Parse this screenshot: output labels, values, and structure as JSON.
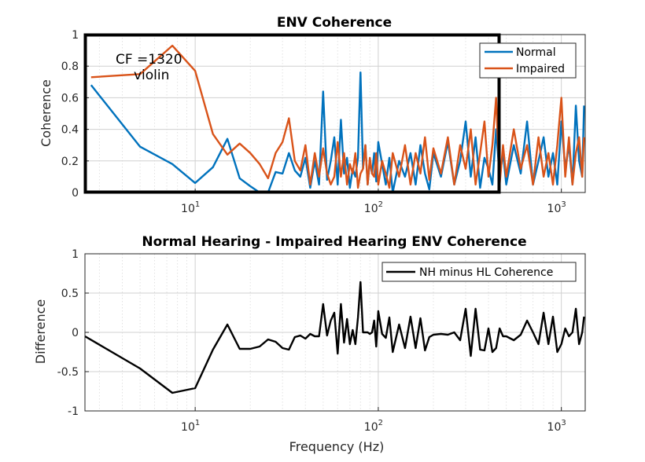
{
  "chart_data": [
    {
      "type": "line",
      "title": "ENV Coherence",
      "xlabel": "",
      "ylabel": "Coherence",
      "xscale": "log",
      "xlim": [
        2.5,
        1350
      ],
      "ylim": [
        0,
        1
      ],
      "yticks": [
        "0",
        "0.2",
        "0.4",
        "0.6",
        "0.8",
        "1"
      ],
      "xticks": [
        {
          "base": "10",
          "exp": "1",
          "value": 10
        },
        {
          "base": "10",
          "exp": "2",
          "value": 100
        },
        {
          "base": "10",
          "exp": "3",
          "value": 1000
        }
      ],
      "grid": true,
      "legend": "top-right",
      "annotations": [
        "CF =1320",
        "violin"
      ],
      "series": [
        {
          "name": "Normal",
          "color": "#0072BD",
          "x": [
            2.7,
            5,
            7.5,
            10,
            12.5,
            15,
            17.5,
            20,
            22.5,
            25,
            27.5,
            30,
            32.5,
            35,
            37.5,
            40,
            42.5,
            45,
            47.5,
            50,
            52.5,
            55,
            57.5,
            60,
            62.5,
            65,
            67.5,
            70,
            72.5,
            75,
            77.5,
            80,
            82.5,
            85,
            87.5,
            90,
            92.5,
            95,
            97.5,
            100,
            105,
            110,
            115,
            120,
            130,
            140,
            150,
            160,
            170,
            180,
            190,
            200,
            220,
            240,
            260,
            280,
            300,
            320,
            340,
            360,
            380,
            400,
            420,
            440,
            460,
            480,
            500,
            550,
            600,
            650,
            700,
            750,
            800,
            850,
            900,
            950,
            1000,
            1050,
            1100,
            1150,
            1200,
            1250,
            1300,
            1330
          ],
          "y": [
            0.68,
            0.29,
            0.18,
            0.06,
            0.16,
            0.34,
            0.09,
            0.04,
            0.0,
            0.0,
            0.13,
            0.12,
            0.25,
            0.14,
            0.1,
            0.22,
            0.03,
            0.2,
            0.05,
            0.64,
            0.08,
            0.2,
            0.35,
            0.05,
            0.46,
            0.12,
            0.22,
            0.03,
            0.15,
            0.1,
            0.22,
            0.76,
            0.15,
            0.3,
            0.05,
            0.2,
            0.12,
            0.25,
            0.07,
            0.32,
            0.18,
            0.05,
            0.22,
            0.0,
            0.2,
            0.1,
            0.25,
            0.05,
            0.3,
            0.12,
            0.02,
            0.25,
            0.1,
            0.32,
            0.05,
            0.2,
            0.45,
            0.1,
            0.35,
            0.03,
            0.22,
            0.15,
            0.05,
            0.4,
            0.1,
            0.25,
            0.05,
            0.3,
            0.12,
            0.45,
            0.05,
            0.2,
            0.35,
            0.1,
            0.25,
            0.05,
            0.45,
            0.15,
            0.3,
            0.05,
            0.55,
            0.2,
            0.1,
            0.55
          ]
        },
        {
          "name": "Impaired",
          "color": "#D95319",
          "x": [
            2.7,
            5,
            7.5,
            10,
            12.5,
            15,
            17.5,
            20,
            22.5,
            25,
            27.5,
            30,
            32.5,
            35,
            37.5,
            40,
            42.5,
            45,
            47.5,
            50,
            52.5,
            55,
            57.5,
            60,
            62.5,
            65,
            67.5,
            70,
            72.5,
            75,
            77.5,
            80,
            82.5,
            85,
            87.5,
            90,
            92.5,
            95,
            97.5,
            100,
            105,
            110,
            115,
            120,
            130,
            140,
            150,
            160,
            170,
            180,
            190,
            200,
            220,
            240,
            260,
            280,
            300,
            320,
            340,
            360,
            380,
            400,
            420,
            440,
            460,
            480,
            500,
            550,
            600,
            650,
            700,
            750,
            800,
            850,
            900,
            950,
            1000,
            1050,
            1100,
            1150,
            1200,
            1250,
            1300,
            1330
          ],
          "y": [
            0.73,
            0.75,
            0.93,
            0.77,
            0.37,
            0.24,
            0.31,
            0.25,
            0.18,
            0.09,
            0.25,
            0.32,
            0.47,
            0.2,
            0.14,
            0.3,
            0.05,
            0.25,
            0.1,
            0.28,
            0.12,
            0.05,
            0.1,
            0.32,
            0.1,
            0.25,
            0.05,
            0.18,
            0.12,
            0.25,
            0.03,
            0.12,
            0.15,
            0.3,
            0.05,
            0.22,
            0.12,
            0.1,
            0.25,
            0.05,
            0.2,
            0.12,
            0.03,
            0.25,
            0.1,
            0.3,
            0.05,
            0.25,
            0.12,
            0.35,
            0.08,
            0.28,
            0.12,
            0.35,
            0.05,
            0.3,
            0.15,
            0.4,
            0.05,
            0.25,
            0.45,
            0.1,
            0.3,
            0.6,
            0.05,
            0.3,
            0.1,
            0.4,
            0.15,
            0.3,
            0.05,
            0.35,
            0.1,
            0.25,
            0.05,
            0.3,
            0.6,
            0.1,
            0.35,
            0.05,
            0.25,
            0.35,
            0.1,
            0.35
          ]
        }
      ]
    },
    {
      "type": "line",
      "title": "Normal Hearing - Impaired Hearing ENV Coherence",
      "xlabel": "Frequency (Hz)",
      "ylabel": "Difference",
      "xscale": "log",
      "xlim": [
        2.5,
        1350
      ],
      "ylim": [
        -1,
        1
      ],
      "yticks": [
        "-1",
        "-0.5",
        "0",
        "0.5",
        "1"
      ],
      "xticks": [
        {
          "base": "10",
          "exp": "1",
          "value": 10
        },
        {
          "base": "10",
          "exp": "2",
          "value": 100
        },
        {
          "base": "10",
          "exp": "3",
          "value": 1000
        }
      ],
      "grid": true,
      "legend": "top-right",
      "series": [
        {
          "name": "NH minus HL Coherence",
          "color": "#000000",
          "x": [
            2.5,
            5,
            7.5,
            10,
            12.5,
            15,
            17.5,
            20,
            22.5,
            25,
            27.5,
            30,
            32.5,
            35,
            37.5,
            40,
            42.5,
            45,
            47.5,
            50,
            52.5,
            55,
            57.5,
            60,
            62.5,
            65,
            67.5,
            70,
            72.5,
            75,
            77.5,
            80,
            82.5,
            85,
            87.5,
            90,
            92.5,
            95,
            97.5,
            100,
            105,
            110,
            115,
            120,
            130,
            140,
            150,
            160,
            170,
            180,
            190,
            200,
            220,
            240,
            260,
            280,
            300,
            320,
            340,
            360,
            380,
            400,
            420,
            440,
            460,
            480,
            500,
            550,
            600,
            650,
            700,
            750,
            800,
            850,
            900,
            950,
            1000,
            1050,
            1100,
            1150,
            1200,
            1250,
            1300,
            1330
          ],
          "y": [
            -0.05,
            -0.46,
            -0.77,
            -0.71,
            -0.22,
            0.1,
            -0.21,
            -0.21,
            -0.18,
            -0.09,
            -0.12,
            -0.2,
            -0.22,
            -0.06,
            -0.04,
            -0.08,
            -0.02,
            -0.05,
            -0.05,
            0.36,
            -0.04,
            0.15,
            0.25,
            -0.27,
            0.36,
            -0.13,
            0.17,
            -0.15,
            0.03,
            -0.15,
            0.19,
            0.64,
            0.0,
            0.0,
            0.0,
            -0.02,
            0.0,
            0.15,
            -0.18,
            0.27,
            -0.02,
            -0.07,
            0.19,
            -0.25,
            0.1,
            -0.2,
            0.2,
            -0.2,
            0.18,
            -0.23,
            -0.06,
            -0.03,
            -0.02,
            -0.03,
            0.0,
            -0.1,
            0.3,
            -0.3,
            0.3,
            -0.22,
            -0.23,
            0.05,
            -0.25,
            -0.2,
            0.05,
            -0.05,
            -0.05,
            -0.1,
            -0.03,
            0.15,
            0.0,
            -0.15,
            0.25,
            -0.15,
            0.2,
            -0.25,
            -0.15,
            0.05,
            -0.05,
            0.0,
            0.3,
            -0.15,
            0.0,
            0.2
          ]
        }
      ]
    }
  ]
}
